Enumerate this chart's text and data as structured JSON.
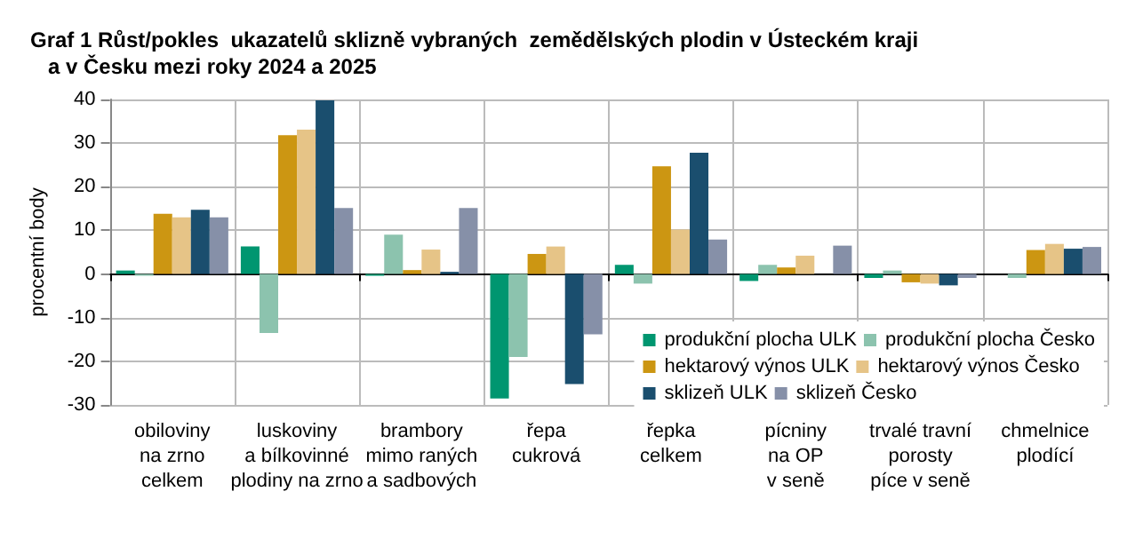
{
  "chart_data": {
    "type": "bar",
    "title": "Graf 1 Růst/pokles  ukazatelů sklizně vybraných  zemědělských plodin v Ústeckém kraji\n   a v Česku mezi roky 2024 a 2025",
    "ylabel": "procentní body",
    "categories": [
      "obiloviny\nna zrno\ncelkem",
      "luskoviny\na bílkovinné\nplodiny na zrno",
      "brambory\nmimo raných\na sadbových",
      "řepa\ncukrová",
      "řepka\ncelkem",
      "pícniny\nna OP\nv seně",
      "trvalé travní\nporosty\npíce v seně",
      "chmelnice\nplodící"
    ],
    "series": [
      {
        "name": "produkční plocha ULK",
        "color": "#009670",
        "values": [
          0.8,
          6.3,
          -0.4,
          -28.5,
          2.1,
          -1.6,
          -0.9,
          0
        ]
      },
      {
        "name": "produkční plocha Česko",
        "color": "#8cc3ae",
        "values": [
          -0.4,
          -13.5,
          9,
          -19,
          -2.2,
          2.1,
          0.8,
          -0.9
        ]
      },
      {
        "name": "hektarový výnos ULK",
        "color": "#cc9612",
        "values": [
          13.8,
          31.8,
          0.9,
          4.6,
          24.7,
          1.5,
          -1.9,
          5.5
        ]
      },
      {
        "name": "hektarový výnos Česko",
        "color": "#e6c487",
        "values": [
          13,
          33.1,
          5.6,
          6.3,
          10.2,
          4.2,
          -2.2,
          6.9
        ]
      },
      {
        "name": "sklizeň ULK",
        "color": "#1a4e6e",
        "values": [
          14.7,
          39.8,
          0.5,
          -25.2,
          27.8,
          0,
          -2.6,
          5.8
        ]
      },
      {
        "name": "sklizeň Česko",
        "color": "#8690a8",
        "values": [
          13,
          15.1,
          15.1,
          -13.8,
          7.9,
          6.5,
          -0.9,
          6.2
        ]
      }
    ],
    "ylim": [
      -30,
      40
    ],
    "yticks": [
      -30,
      -20,
      -10,
      0,
      10,
      20,
      30,
      40
    ],
    "grid": true,
    "legend": "bottom right"
  }
}
